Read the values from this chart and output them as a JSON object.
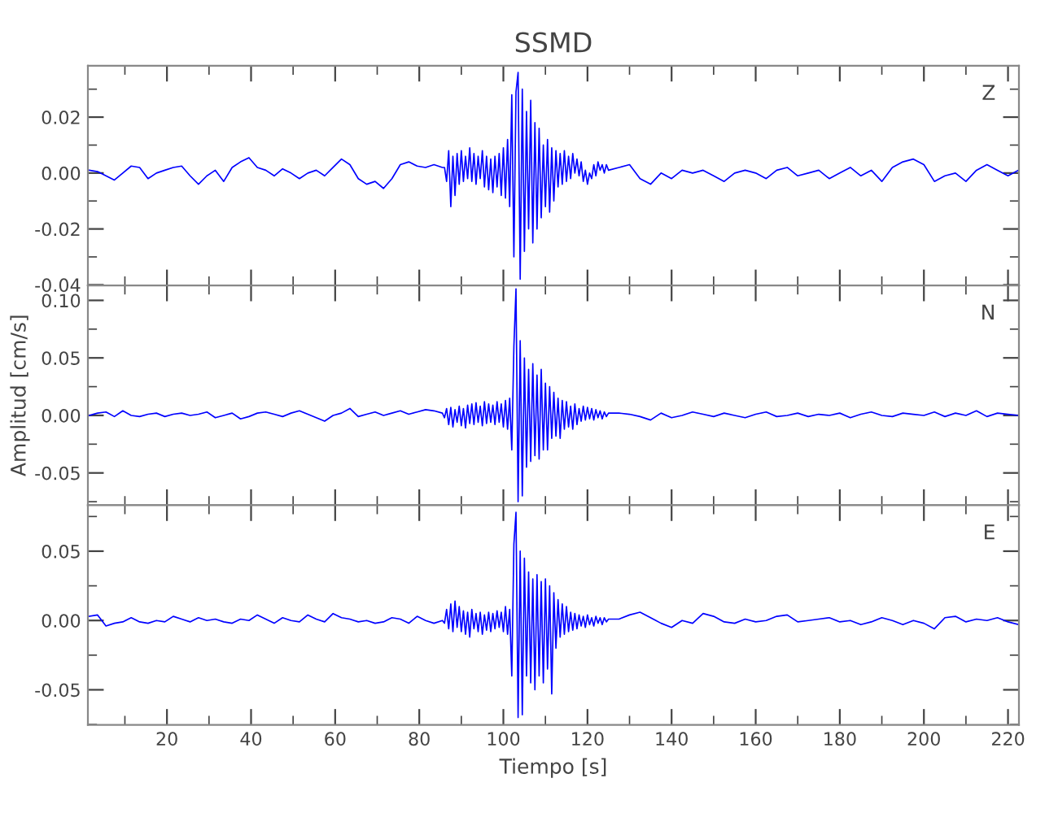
{
  "chart_data": [
    {
      "type": "line",
      "title": "SSMD",
      "annotations": [
        "Z"
      ],
      "tick_labels": "y",
      "grid": false,
      "xlim": [
        1.2,
        222.6
      ],
      "xticks": [
        20,
        40,
        60,
        80,
        100,
        120,
        140,
        160,
        180,
        200,
        220
      ],
      "ylim": [
        -0.0402,
        0.0384
      ],
      "yticks": [
        {
          "value": -0.04,
          "label": "-0.04"
        },
        {
          "value": -0.02,
          "label": "-0.02"
        },
        {
          "value": 0,
          "label": "0.00"
        },
        {
          "value": 0.02,
          "label": "0.02"
        }
      ],
      "x": [
        1.5,
        3.5,
        5.5,
        7.5,
        9.5,
        11.5,
        13.5,
        15.5,
        17.5,
        19.5,
        21.5,
        23.5,
        25.5,
        27.5,
        29.5,
        31.5,
        33.5,
        35.5,
        37.5,
        39.5,
        41.5,
        43.5,
        45.5,
        47.5,
        49.5,
        51.5,
        53.5,
        55.5,
        57.5,
        59.5,
        61.5,
        63.5,
        65.5,
        67.5,
        69.5,
        71.5,
        73.5,
        75.5,
        77.5,
        79.5,
        81.5,
        83.5,
        85.5,
        86,
        86.5,
        87,
        87.5,
        88,
        88.5,
        89,
        89.5,
        90,
        90.5,
        91,
        91.5,
        92,
        92.5,
        93,
        93.5,
        94,
        94.5,
        95,
        95.5,
        96,
        96.5,
        97,
        97.5,
        98,
        98.5,
        99,
        99.5,
        100,
        100.5,
        101,
        101.5,
        102,
        102.5,
        103,
        103.5,
        104,
        104.5,
        105,
        105.5,
        106,
        106.5,
        107,
        107.5,
        108,
        108.5,
        109,
        109.5,
        110,
        110.5,
        111,
        111.5,
        112,
        112.5,
        113,
        113.5,
        114,
        114.5,
        115,
        115.5,
        116,
        116.5,
        117,
        117.5,
        118,
        118.5,
        119,
        119.5,
        120,
        120.5,
        121,
        121.5,
        122,
        122.5,
        123,
        123.5,
        124,
        124.5,
        125,
        127.5,
        130,
        132.5,
        135,
        137.5,
        140,
        142.5,
        145,
        147.5,
        150,
        152.5,
        155,
        157.5,
        160,
        162.5,
        165,
        167.5,
        170,
        172.5,
        175,
        177.5,
        180,
        182.5,
        185,
        187.5,
        190,
        192.5,
        195,
        197.5,
        200,
        202.5,
        205,
        207.5,
        210,
        212.5,
        215,
        217.5,
        220,
        222.5
      ],
      "series": [
        {
          "color": "#0000ff",
          "values": [
            0.001,
            0.0005,
            -0.001,
            -0.0025,
            0.0,
            0.0025,
            0.002,
            -0.002,
            0.0,
            0.001,
            0.002,
            0.0025,
            -0.001,
            -0.004,
            -0.001,
            0.001,
            -0.003,
            0.002,
            0.004,
            0.0055,
            0.002,
            0.001,
            -0.001,
            0.0015,
            0.0,
            -0.002,
            0.0,
            0.001,
            -0.001,
            0.002,
            0.005,
            0.003,
            -0.002,
            -0.004,
            -0.003,
            -0.0055,
            -0.002,
            0.003,
            0.004,
            0.0025,
            0.002,
            0.003,
            0.002,
            0.002,
            -0.003,
            0.008,
            -0.012,
            0.006,
            -0.008,
            0.007,
            -0.004,
            0.008,
            -0.003,
            0.006,
            -0.002,
            0.009,
            -0.003,
            0.007,
            -0.004,
            0.006,
            -0.002,
            0.008,
            -0.005,
            0.006,
            -0.006,
            0.005,
            -0.007,
            0.006,
            -0.005,
            0.007,
            -0.008,
            0.009,
            -0.009,
            0.012,
            -0.012,
            0.028,
            -0.03,
            0.029,
            0.036,
            -0.038,
            0.03,
            -0.028,
            0.022,
            -0.02,
            0.026,
            -0.025,
            0.018,
            -0.02,
            0.016,
            -0.016,
            0.01,
            -0.012,
            0.012,
            -0.014,
            0.009,
            -0.01,
            0.008,
            -0.005,
            0.007,
            -0.004,
            0.008,
            -0.003,
            0.006,
            -0.002,
            0.007,
            0.0,
            0.005,
            -0.001,
            0.004,
            -0.003,
            0.001,
            -0.004,
            0.0,
            -0.002,
            0.003,
            -0.001,
            0.004,
            0.001,
            0.003,
            0.0,
            0.003,
            0.001,
            0.002,
            0.003,
            -0.002,
            -0.004,
            0.0,
            -0.002,
            0.001,
            0.0,
            0.001,
            -0.001,
            -0.003,
            0.0,
            0.001,
            0.0,
            -0.002,
            0.001,
            0.002,
            -0.001,
            0.0,
            0.001,
            -0.002,
            0.0,
            0.002,
            -0.001,
            0.001,
            -0.003,
            0.002,
            0.004,
            0.005,
            0.003,
            -0.003,
            -0.001,
            0.0,
            -0.003,
            0.001,
            0.003,
            0.001,
            -0.001,
            0.001
          ]
        }
      ]
    },
    {
      "type": "line",
      "ylabel": "Amplitud [cm/s]",
      "annotations": [
        "N"
      ],
      "tick_labels": "y",
      "grid": false,
      "xlim": [
        1.2,
        222.6
      ],
      "xticks": [
        20,
        40,
        60,
        80,
        100,
        120,
        140,
        160,
        180,
        200,
        220
      ],
      "ylim": [
        -0.078,
        0.113
      ],
      "yticks": [
        {
          "value": -0.05,
          "label": "-0.05"
        },
        {
          "value": 0,
          "label": "0.00"
        },
        {
          "value": 0.05,
          "label": "0.05"
        },
        {
          "value": 0.1,
          "label": "0.10"
        }
      ],
      "x": [
        1.5,
        3.5,
        5.5,
        7.5,
        9.5,
        11.5,
        13.5,
        15.5,
        17.5,
        19.5,
        21.5,
        23.5,
        25.5,
        27.5,
        29.5,
        31.5,
        33.5,
        35.5,
        37.5,
        39.5,
        41.5,
        43.5,
        45.5,
        47.5,
        49.5,
        51.5,
        53.5,
        55.5,
        57.5,
        59.5,
        61.5,
        63.5,
        65.5,
        67.5,
        69.5,
        71.5,
        73.5,
        75.5,
        77.5,
        79.5,
        81.5,
        83.5,
        85.5,
        86,
        86.5,
        87,
        87.5,
        88,
        88.5,
        89,
        89.5,
        90,
        90.5,
        91,
        91.5,
        92,
        92.5,
        93,
        93.5,
        94,
        94.5,
        95,
        95.5,
        96,
        96.5,
        97,
        97.5,
        98,
        98.5,
        99,
        99.5,
        100,
        100.5,
        101,
        101.5,
        102,
        102.5,
        103,
        103.5,
        104,
        104.5,
        105,
        105.5,
        106,
        106.5,
        107,
        107.5,
        108,
        108.5,
        109,
        109.5,
        110,
        110.5,
        111,
        111.5,
        112,
        112.5,
        113,
        113.5,
        114,
        114.5,
        115,
        115.5,
        116,
        116.5,
        117,
        117.5,
        118,
        118.5,
        119,
        119.5,
        120,
        120.5,
        121,
        121.5,
        122,
        122.5,
        123,
        123.5,
        124,
        124.5,
        125,
        127.5,
        130,
        132.5,
        135,
        137.5,
        140,
        142.5,
        145,
        147.5,
        150,
        152.5,
        155,
        157.5,
        160,
        162.5,
        165,
        167.5,
        170,
        172.5,
        175,
        177.5,
        180,
        182.5,
        185,
        187.5,
        190,
        192.5,
        195,
        197.5,
        200,
        202.5,
        205,
        207.5,
        210,
        212.5,
        215,
        217.5,
        220,
        222.5
      ],
      "series": [
        {
          "color": "#0000ff",
          "values": [
            0.0,
            0.002,
            0.003,
            -0.001,
            0.004,
            0.0,
            -0.001,
            0.001,
            0.002,
            -0.001,
            0.001,
            0.002,
            0.0,
            0.001,
            0.003,
            -0.002,
            0.0,
            0.002,
            -0.003,
            -0.001,
            0.002,
            0.003,
            0.001,
            -0.001,
            0.002,
            0.004,
            0.001,
            -0.002,
            -0.005,
            0.0,
            0.002,
            0.006,
            -0.001,
            0.001,
            0.003,
            0.0,
            0.002,
            0.004,
            0.001,
            0.003,
            0.005,
            0.004,
            0.002,
            -0.002,
            0.006,
            -0.008,
            0.007,
            -0.01,
            0.005,
            -0.006,
            0.008,
            -0.009,
            0.006,
            -0.011,
            0.009,
            -0.007,
            0.01,
            -0.008,
            0.011,
            -0.006,
            0.008,
            -0.009,
            0.012,
            -0.007,
            0.01,
            -0.006,
            0.009,
            -0.008,
            0.012,
            -0.006,
            0.01,
            -0.01,
            0.013,
            -0.012,
            0.015,
            -0.03,
            0.06,
            0.11,
            -0.075,
            0.065,
            -0.07,
            0.05,
            -0.045,
            0.04,
            -0.04,
            0.045,
            -0.035,
            0.035,
            -0.038,
            0.04,
            -0.03,
            0.028,
            -0.03,
            0.025,
            -0.02,
            0.02,
            -0.018,
            0.015,
            -0.02,
            0.013,
            -0.012,
            0.012,
            -0.01,
            0.008,
            -0.012,
            0.01,
            -0.008,
            0.006,
            -0.005,
            0.008,
            -0.004,
            0.007,
            -0.003,
            0.006,
            -0.004,
            0.005,
            -0.002,
            0.004,
            -0.003,
            0.003,
            -0.001,
            0.002,
            0.002,
            0.001,
            -0.001,
            -0.004,
            0.002,
            -0.002,
            0.0,
            0.003,
            0.001,
            -0.001,
            0.002,
            0.0,
            -0.002,
            0.001,
            0.003,
            -0.001,
            0.0,
            0.002,
            -0.001,
            0.001,
            0.0,
            0.002,
            -0.002,
            0.001,
            0.003,
            0.0,
            -0.001,
            0.002,
            0.001,
            0.0,
            0.003,
            -0.001,
            0.002,
            0.0,
            0.004,
            -0.001,
            0.002,
            0.001,
            0.0
          ]
        }
      ]
    },
    {
      "type": "line",
      "xlabel": "Tiempo [s]",
      "annotations": [
        "E"
      ],
      "grid": false,
      "xlim": [
        1.2,
        222.6
      ],
      "xticks": [
        20,
        40,
        60,
        80,
        100,
        120,
        140,
        160,
        180,
        200,
        220
      ],
      "ylim": [
        -0.0753,
        0.0832
      ],
      "yticks": [
        {
          "value": -0.05,
          "label": "-0.05"
        },
        {
          "value": 0,
          "label": "0.00"
        },
        {
          "value": 0.05,
          "label": "0.05"
        }
      ],
      "x": [
        1.5,
        3.5,
        5.5,
        7.5,
        9.5,
        11.5,
        13.5,
        15.5,
        17.5,
        19.5,
        21.5,
        23.5,
        25.5,
        27.5,
        29.5,
        31.5,
        33.5,
        35.5,
        37.5,
        39.5,
        41.5,
        43.5,
        45.5,
        47.5,
        49.5,
        51.5,
        53.5,
        55.5,
        57.5,
        59.5,
        61.5,
        63.5,
        65.5,
        67.5,
        69.5,
        71.5,
        73.5,
        75.5,
        77.5,
        79.5,
        81.5,
        83.5,
        85.5,
        86,
        86.5,
        87,
        87.5,
        88,
        88.5,
        89,
        89.5,
        90,
        90.5,
        91,
        91.5,
        92,
        92.5,
        93,
        93.5,
        94,
        94.5,
        95,
        95.5,
        96,
        96.5,
        97,
        97.5,
        98,
        98.5,
        99,
        99.5,
        100,
        100.5,
        101,
        101.5,
        102,
        102.5,
        103,
        103.5,
        104,
        104.5,
        105,
        105.5,
        106,
        106.5,
        107,
        107.5,
        108,
        108.5,
        109,
        109.5,
        110,
        110.5,
        111,
        111.5,
        112,
        112.5,
        113,
        113.5,
        114,
        114.5,
        115,
        115.5,
        116,
        116.5,
        117,
        117.5,
        118,
        118.5,
        119,
        119.5,
        120,
        120.5,
        121,
        121.5,
        122,
        122.5,
        123,
        123.5,
        124,
        124.5,
        125,
        127.5,
        130,
        132.5,
        135,
        137.5,
        140,
        142.5,
        145,
        147.5,
        150,
        152.5,
        155,
        157.5,
        160,
        162.5,
        165,
        167.5,
        170,
        172.5,
        175,
        177.5,
        180,
        182.5,
        185,
        187.5,
        190,
        192.5,
        195,
        197.5,
        200,
        202.5,
        205,
        207.5,
        210,
        212.5,
        215,
        217.5,
        220,
        222.5
      ],
      "series": [
        {
          "color": "#0000ff",
          "values": [
            0.003,
            0.004,
            -0.004,
            -0.002,
            -0.001,
            0.002,
            -0.001,
            -0.002,
            0.0,
            -0.001,
            0.003,
            0.001,
            -0.001,
            0.002,
            0.0,
            0.001,
            -0.001,
            -0.002,
            0.001,
            0.0,
            0.004,
            0.001,
            -0.002,
            0.002,
            0.0,
            -0.001,
            0.004,
            0.001,
            -0.001,
            0.005,
            0.002,
            0.001,
            -0.001,
            0.0,
            -0.002,
            -0.001,
            0.002,
            0.001,
            -0.002,
            0.003,
            0.0,
            -0.002,
            0.0,
            -0.002,
            0.008,
            -0.006,
            0.012,
            -0.008,
            0.014,
            -0.005,
            0.01,
            -0.008,
            0.007,
            -0.01,
            0.006,
            -0.012,
            0.008,
            -0.006,
            0.005,
            -0.008,
            0.006,
            -0.01,
            0.004,
            -0.007,
            0.006,
            -0.008,
            0.005,
            -0.006,
            0.007,
            -0.005,
            0.006,
            -0.008,
            0.01,
            -0.01,
            0.008,
            -0.04,
            0.055,
            0.078,
            -0.07,
            0.05,
            -0.068,
            0.045,
            -0.04,
            0.035,
            -0.045,
            0.03,
            -0.05,
            0.033,
            -0.04,
            0.028,
            -0.045,
            0.03,
            -0.035,
            0.025,
            -0.053,
            0.02,
            -0.02,
            0.015,
            -0.012,
            0.012,
            -0.01,
            0.01,
            -0.008,
            0.006,
            -0.007,
            0.005,
            -0.006,
            0.004,
            -0.004,
            0.003,
            -0.005,
            0.004,
            -0.003,
            0.002,
            -0.004,
            0.003,
            -0.002,
            0.002,
            -0.003,
            0.002,
            -0.001,
            0.001,
            0.001,
            0.004,
            0.006,
            0.002,
            -0.002,
            -0.005,
            0.0,
            -0.002,
            0.005,
            0.003,
            -0.001,
            -0.002,
            0.001,
            -0.001,
            0.0,
            0.003,
            0.004,
            -0.001,
            0.0,
            0.001,
            0.002,
            -0.001,
            0.0,
            -0.003,
            -0.001,
            0.002,
            0.0,
            -0.003,
            0.0,
            -0.002,
            -0.006,
            0.002,
            0.003,
            -0.001,
            0.001,
            0.0,
            0.002,
            -0.001,
            -0.003
          ]
        }
      ]
    }
  ]
}
